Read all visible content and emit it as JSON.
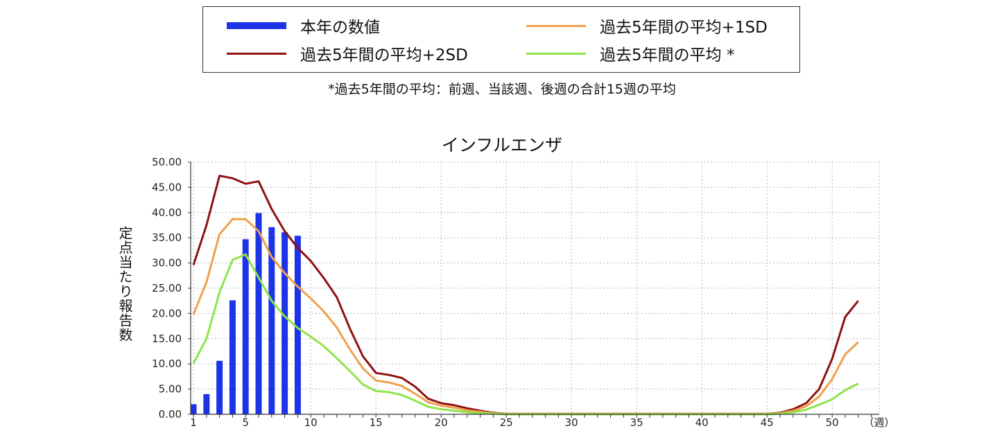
{
  "legend": {
    "entries": [
      {
        "key": "current",
        "label": "本年の数値",
        "color": "#1d33e8"
      },
      {
        "key": "sd1",
        "label": "過去5年間の平均+1SD",
        "color": "#f0a04b"
      },
      {
        "key": "sd2",
        "label": "過去5年間の平均+2SD",
        "color": "#8e1010"
      },
      {
        "key": "avg",
        "label": "過去5年間の平均 *",
        "color": "#8de54a"
      }
    ],
    "note": "*過去5年間の平均：前週、当該週、後週の合計15週の平均"
  },
  "chart_data": {
    "type": "bar",
    "title": "インフルエンザ",
    "ylabel": "定点当たり報告数",
    "xlabel": "（週）",
    "ylim": [
      0,
      50
    ],
    "xlim": [
      1,
      53
    ],
    "y_ticks": [
      "0.00",
      "5.00",
      "10.00",
      "15.00",
      "20.00",
      "25.00",
      "30.00",
      "35.00",
      "40.00",
      "45.00",
      "50.00"
    ],
    "x_ticks": [
      "1",
      "5",
      "10",
      "15",
      "20",
      "25",
      "30",
      "35",
      "40",
      "45",
      "50"
    ],
    "grid": true,
    "bars": {
      "name": "本年の数値",
      "x": [
        1,
        2,
        3,
        4,
        5,
        6,
        7,
        8,
        9
      ],
      "values": [
        2.0,
        4.0,
        10.6,
        22.6,
        34.7,
        39.9,
        37.1,
        36.1,
        35.4
      ]
    },
    "series": [
      {
        "name": "過去5年間の平均+2SD",
        "x": [
          1,
          2,
          3,
          4,
          5,
          6,
          7,
          8,
          9,
          10,
          11,
          12,
          13,
          14,
          15,
          16,
          17,
          18,
          19,
          20,
          21,
          22,
          23,
          24,
          25,
          26,
          27,
          28,
          29,
          30,
          31,
          32,
          33,
          34,
          35,
          36,
          37,
          38,
          39,
          40,
          41,
          42,
          43,
          44,
          45,
          46,
          47,
          48,
          49,
          50,
          51,
          52
        ],
        "values": [
          29.6,
          37.5,
          47.3,
          46.8,
          45.7,
          46.2,
          40.7,
          36.3,
          33.0,
          30.4,
          27.0,
          23.2,
          17.0,
          11.5,
          8.2,
          7.8,
          7.2,
          5.5,
          3.1,
          2.2,
          1.8,
          1.2,
          0.7,
          0.3,
          0.1,
          0.1,
          0.1,
          0.1,
          0.1,
          0.1,
          0.1,
          0.1,
          0.1,
          0.1,
          0.1,
          0.1,
          0.1,
          0.1,
          0.1,
          0.1,
          0.1,
          0.1,
          0.1,
          0.1,
          0.1,
          0.3,
          1.0,
          2.2,
          5.0,
          11.0,
          19.3,
          22.5
        ]
      },
      {
        "name": "過去5年間の平均+1SD",
        "x": [
          1,
          2,
          3,
          4,
          5,
          6,
          7,
          8,
          9,
          10,
          11,
          12,
          13,
          14,
          15,
          16,
          17,
          18,
          19,
          20,
          21,
          22,
          23,
          24,
          25,
          26,
          27,
          28,
          29,
          30,
          31,
          32,
          33,
          34,
          35,
          36,
          37,
          38,
          39,
          40,
          41,
          42,
          43,
          44,
          45,
          46,
          47,
          48,
          49,
          50,
          51,
          52
        ],
        "values": [
          19.8,
          26.2,
          35.7,
          38.7,
          38.7,
          36.3,
          31.2,
          28.0,
          25.3,
          23.0,
          20.4,
          17.2,
          12.9,
          9.1,
          6.7,
          6.3,
          5.6,
          4.1,
          2.4,
          1.7,
          1.3,
          0.8,
          0.5,
          0.2,
          0.1,
          0.1,
          0.1,
          0.1,
          0.1,
          0.1,
          0.1,
          0.1,
          0.1,
          0.1,
          0.1,
          0.1,
          0.1,
          0.1,
          0.1,
          0.1,
          0.1,
          0.1,
          0.1,
          0.1,
          0.1,
          0.2,
          0.7,
          1.6,
          3.5,
          7.0,
          11.9,
          14.3
        ]
      },
      {
        "name": "過去5年間の平均 *",
        "x": [
          1,
          2,
          3,
          4,
          5,
          6,
          7,
          8,
          9,
          10,
          11,
          12,
          13,
          14,
          15,
          16,
          17,
          18,
          19,
          20,
          21,
          22,
          23,
          24,
          25,
          26,
          27,
          28,
          29,
          30,
          31,
          32,
          33,
          34,
          35,
          36,
          37,
          38,
          39,
          40,
          41,
          42,
          43,
          44,
          45,
          46,
          47,
          48,
          49,
          50,
          51,
          52
        ],
        "values": [
          10.1,
          15.0,
          24.2,
          30.6,
          31.7,
          27.1,
          22.5,
          19.4,
          17.1,
          15.4,
          13.5,
          11.1,
          8.6,
          5.9,
          4.6,
          4.4,
          3.8,
          2.7,
          1.5,
          1.0,
          0.7,
          0.4,
          0.2,
          0.1,
          0.0,
          0.0,
          0.0,
          0.0,
          0.0,
          0.0,
          0.0,
          0.0,
          0.0,
          0.0,
          0.0,
          0.0,
          0.0,
          0.0,
          0.0,
          0.0,
          0.0,
          0.0,
          0.0,
          0.0,
          0.0,
          0.1,
          0.4,
          0.9,
          1.9,
          3.0,
          4.8,
          6.1
        ]
      }
    ]
  }
}
